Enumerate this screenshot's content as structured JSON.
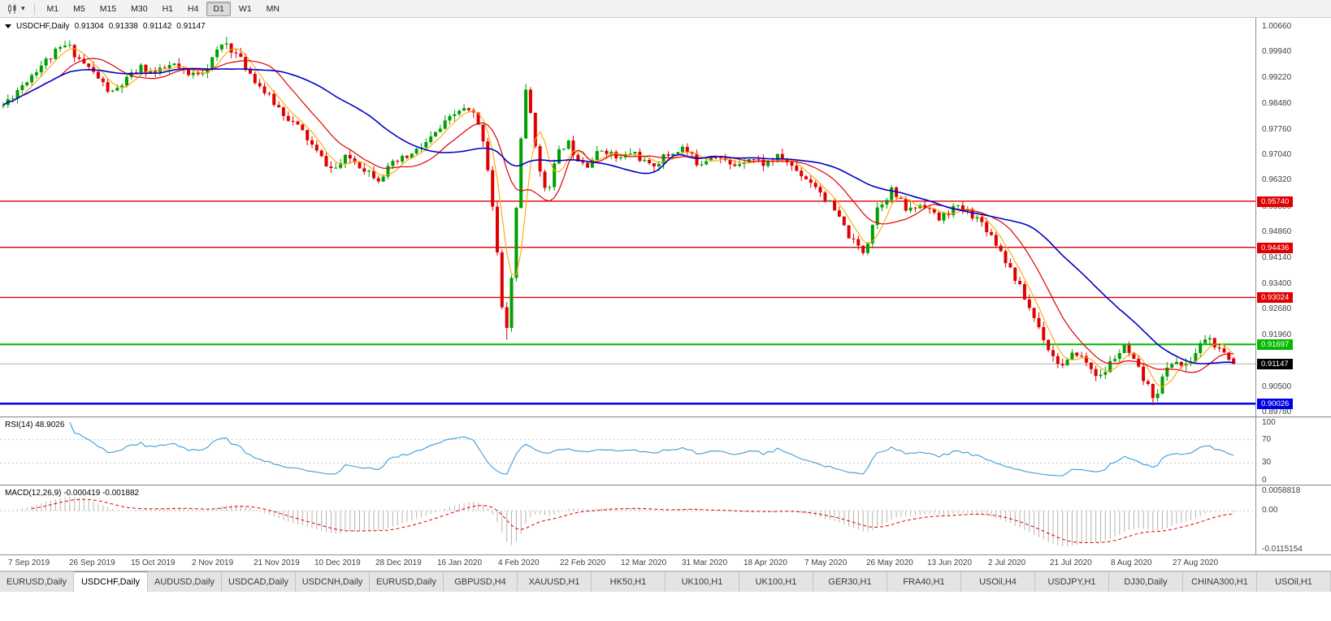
{
  "toolbar": {
    "chart_type_tooltip": "Candlestick chart",
    "timeframes": [
      "M1",
      "M5",
      "M15",
      "M30",
      "H1",
      "H4",
      "D1",
      "W1",
      "MN"
    ],
    "active_timeframe": "D1"
  },
  "header": {
    "symbol": "USDCHF,Daily",
    "open": "0.91304",
    "high": "0.91338",
    "low": "0.91142",
    "close": "0.91147"
  },
  "panes": {
    "rsi_label": "RSI(14) 48.9026",
    "macd_label": "MACD(12,26,9) -0.000419 -0.001882"
  },
  "price_axis": {
    "labels": [
      {
        "v": 1.0066,
        "t": "1.00660"
      },
      {
        "v": 0.9994,
        "t": "0.99940"
      },
      {
        "v": 0.9922,
        "t": "0.99220"
      },
      {
        "v": 0.9848,
        "t": "0.98480"
      },
      {
        "v": 0.9776,
        "t": "0.97760"
      },
      {
        "v": 0.9704,
        "t": "0.97040"
      },
      {
        "v": 0.9632,
        "t": "0.96320"
      },
      {
        "v": 0.9558,
        "t": "0.95580"
      },
      {
        "v": 0.9486,
        "t": "0.94860"
      },
      {
        "v": 0.9414,
        "t": "0.94140"
      },
      {
        "v": 0.934,
        "t": "0.93400"
      },
      {
        "v": 0.9268,
        "t": "0.92680"
      },
      {
        "v": 0.9196,
        "t": "0.91960"
      },
      {
        "v": 0.905,
        "t": "0.90500"
      },
      {
        "v": 0.8978,
        "t": "0.89780"
      }
    ]
  },
  "tabs": {
    "active_index": 1,
    "items": [
      "EURUSD,Daily",
      "USDCHF,Daily",
      "AUDUSD,Daily",
      "USDCAD,Daily",
      "USDCNH,Daily",
      "EURUSD,Daily",
      "GBPUSD,H4",
      "XAUUSD,H1",
      "HK50,H1",
      "UK100,H1",
      "UK100,H1",
      "GER30,H1",
      "FRA40,H1",
      "USOil,H4",
      "USDJPY,H1",
      "DJ30,Daily",
      "CHINA300,H1",
      "USOil,H1"
    ]
  },
  "chart_data": {
    "type": "candlestick",
    "symbol": "USDCHF",
    "timeframe": "Daily",
    "ohlc_current": {
      "open": 0.91304,
      "high": 0.91338,
      "low": 0.91142,
      "close": 0.91147
    },
    "y_range": {
      "top": 1.0066,
      "bottom": 0.8978
    },
    "candle_count": 260,
    "seed": 11,
    "noise": 0.0024,
    "wick": 0.0016,
    "colors": {
      "up": "#00A000",
      "down": "#E00000"
    },
    "close_path": [
      [
        0.0,
        0.9845
      ],
      [
        0.012,
        0.989
      ],
      [
        0.028,
        0.995
      ],
      [
        0.045,
        1.0
      ],
      [
        0.052,
        1.0015
      ],
      [
        0.062,
        0.9975
      ],
      [
        0.075,
        0.993
      ],
      [
        0.088,
        0.9875
      ],
      [
        0.1,
        0.9915
      ],
      [
        0.112,
        0.995
      ],
      [
        0.125,
        0.9935
      ],
      [
        0.138,
        0.996
      ],
      [
        0.15,
        0.9925
      ],
      [
        0.165,
        0.995
      ],
      [
        0.18,
        1.0025
      ],
      [
        0.19,
        0.9985
      ],
      [
        0.202,
        0.993
      ],
      [
        0.215,
        0.987
      ],
      [
        0.23,
        0.9815
      ],
      [
        0.243,
        0.977
      ],
      [
        0.256,
        0.9705
      ],
      [
        0.268,
        0.966
      ],
      [
        0.28,
        0.97
      ],
      [
        0.293,
        0.9668
      ],
      [
        0.305,
        0.964
      ],
      [
        0.318,
        0.968
      ],
      [
        0.332,
        0.9705
      ],
      [
        0.346,
        0.9745
      ],
      [
        0.36,
        0.9795
      ],
      [
        0.372,
        0.9835
      ],
      [
        0.382,
        0.982
      ],
      [
        0.39,
        0.975
      ],
      [
        0.396,
        0.962
      ],
      [
        0.401,
        0.945
      ],
      [
        0.405,
        0.928
      ],
      [
        0.408,
        0.9185
      ],
      [
        0.412,
        0.93
      ],
      [
        0.416,
        0.95
      ],
      [
        0.42,
        0.972
      ],
      [
        0.424,
        0.989
      ],
      [
        0.43,
        0.98
      ],
      [
        0.436,
        0.965
      ],
      [
        0.442,
        0.96
      ],
      [
        0.45,
        0.97
      ],
      [
        0.458,
        0.9745
      ],
      [
        0.466,
        0.97
      ],
      [
        0.475,
        0.968
      ],
      [
        0.488,
        0.9725
      ],
      [
        0.5,
        0.969
      ],
      [
        0.512,
        0.9715
      ],
      [
        0.525,
        0.967
      ],
      [
        0.538,
        0.97
      ],
      [
        0.552,
        0.9725
      ],
      [
        0.565,
        0.968
      ],
      [
        0.578,
        0.971
      ],
      [
        0.592,
        0.967
      ],
      [
        0.605,
        0.97
      ],
      [
        0.618,
        0.968
      ],
      [
        0.632,
        0.97
      ],
      [
        0.645,
        0.966
      ],
      [
        0.66,
        0.962
      ],
      [
        0.675,
        0.955
      ],
      [
        0.69,
        0.946
      ],
      [
        0.7,
        0.943
      ],
      [
        0.71,
        0.9555
      ],
      [
        0.722,
        0.9605
      ],
      [
        0.735,
        0.9545
      ],
      [
        0.748,
        0.957
      ],
      [
        0.76,
        0.952
      ],
      [
        0.772,
        0.9555
      ],
      [
        0.785,
        0.9545
      ],
      [
        0.798,
        0.9505
      ],
      [
        0.81,
        0.944
      ],
      [
        0.822,
        0.936
      ],
      [
        0.833,
        0.928
      ],
      [
        0.843,
        0.921
      ],
      [
        0.852,
        0.914
      ],
      [
        0.862,
        0.9105
      ],
      [
        0.872,
        0.915
      ],
      [
        0.882,
        0.911
      ],
      [
        0.892,
        0.9075
      ],
      [
        0.902,
        0.913
      ],
      [
        0.912,
        0.916
      ],
      [
        0.922,
        0.91
      ],
      [
        0.93,
        0.905
      ],
      [
        0.936,
        0.902
      ],
      [
        0.944,
        0.909
      ],
      [
        0.952,
        0.913
      ],
      [
        0.96,
        0.91
      ],
      [
        0.968,
        0.914
      ],
      [
        0.978,
        0.9195
      ],
      [
        0.988,
        0.915
      ],
      [
        1.0,
        0.91147
      ]
    ],
    "pins": [
      {
        "frac": 0.052,
        "kind": "high",
        "price": 1.0022
      },
      {
        "frac": 0.18,
        "kind": "high",
        "price": 1.0038
      },
      {
        "frac": 0.408,
        "kind": "low",
        "price": 0.9183
      },
      {
        "frac": 0.424,
        "kind": "high",
        "price": 0.9905
      },
      {
        "frac": 0.936,
        "kind": "low",
        "price": 0.8998
      },
      {
        "frac": 0.978,
        "kind": "high",
        "price": 0.9196
      },
      {
        "frac": 1.0,
        "kind": "ohlc",
        "o": 0.91304,
        "h": 0.91338,
        "l": 0.91142,
        "c": 0.91147
      }
    ],
    "moving_averages": [
      {
        "period": 5,
        "color": "#FFA500",
        "width": 1.1
      },
      {
        "period": 13,
        "color": "#E00000",
        "width": 1.2
      },
      {
        "period": 34,
        "color": "#0000C8",
        "width": 1.6
      }
    ],
    "levels": [
      {
        "price": 0.9574,
        "label": "0.95740",
        "color": "#E00000",
        "width": 1.4
      },
      {
        "price": 0.94436,
        "label": "0.94436",
        "color": "#E00000",
        "width": 1.4
      },
      {
        "price": 0.93024,
        "label": "0.93024",
        "color": "#E00000",
        "width": 1.4
      },
      {
        "price": 0.91697,
        "label": "0.91697",
        "color": "#00BB00",
        "width": 2
      },
      {
        "price": 0.90026,
        "label": "0.90026",
        "color": "#0000E6",
        "width": 2.5
      }
    ],
    "current_price": {
      "value": 0.91147,
      "label": "0.91147",
      "badge_color": "#000000",
      "line_color": "#b0b0b0"
    },
    "rsi": {
      "period": 14,
      "value": 48.9026,
      "color": "#3E9BD8",
      "range": [
        0,
        100
      ],
      "level_lines": [
        70,
        30
      ],
      "axis": [
        {
          "v": 100,
          "t": "100"
        },
        {
          "v": 70,
          "t": "70"
        },
        {
          "v": 30,
          "t": "30"
        },
        {
          "v": 0,
          "t": "0"
        }
      ]
    },
    "macd": {
      "fast": 12,
      "slow": 26,
      "signal": 9,
      "value": -0.000419,
      "signal_value": -0.001882,
      "scale_max": 0.0058818,
      "scale_min": -0.0115154,
      "hist_color": "#b4b4b4",
      "signal_color": "#E00000",
      "axis": [
        {
          "v": 0.0058818,
          "t": "0.0058818"
        },
        {
          "v": 0,
          "t": "0.00"
        },
        {
          "v": -0.0115154,
          "t": "-0.0115154"
        }
      ]
    },
    "x_labels": [
      "7 Sep 2019",
      "26 Sep 2019",
      "15 Oct 2019",
      "2 Nov 2019",
      "21 Nov 2019",
      "10 Dec 2019",
      "28 Dec 2019",
      "16 Jan 2020",
      "4 Feb 2020",
      "22 Feb 2020",
      "12 Mar 2020",
      "31 Mar 2020",
      "18 Apr 2020",
      "7 May 2020",
      "26 May 2020",
      "13 Jun 2020",
      "2 Jul 2020",
      "21 Jul 2020",
      "8 Aug 2020",
      "27 Aug 2020"
    ]
  }
}
